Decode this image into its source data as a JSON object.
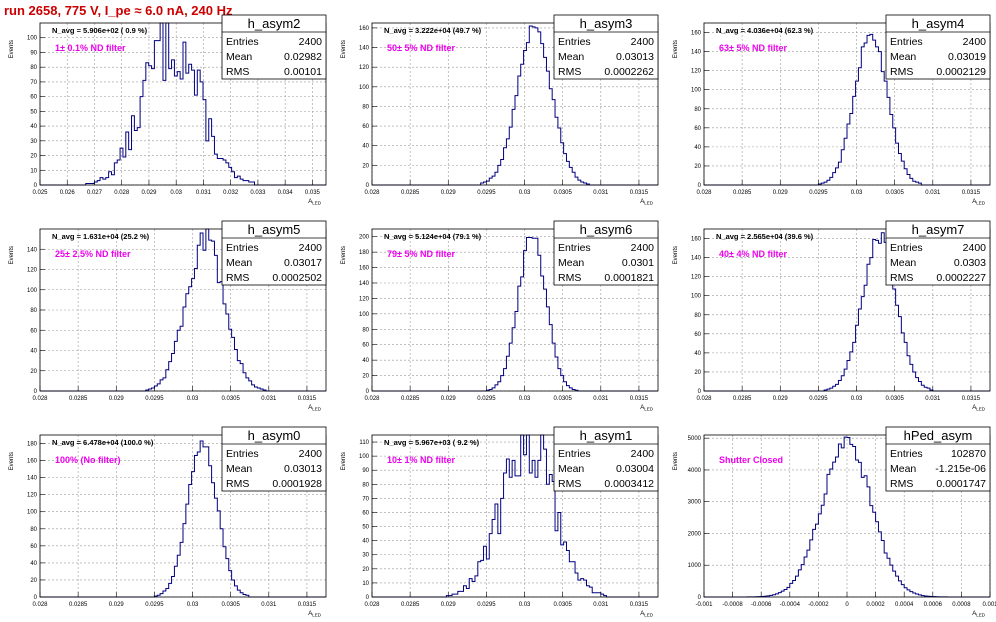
{
  "header": {
    "title": "run 2658,   775 V, I_pe ≈ 6.0 nA, 240 Hz"
  },
  "colors": {
    "histogram": "#000080",
    "title": "#cc0000",
    "annotation": "#ee00ee",
    "grid": "#9a9a9a"
  },
  "chart_data": [
    {
      "type": "histogram",
      "name": "h_asym2",
      "navg": "N_avg = 5.906e+02 ( 0.9 %)",
      "filter": "1± 0.1% ND filter",
      "stats": [
        [
          "Entries",
          "2400"
        ],
        [
          "Mean",
          "0.02982"
        ],
        [
          "RMS",
          "0.00101"
        ]
      ],
      "xlabel": "A_LED",
      "ylabel": "Events",
      "xlim": [
        0.025,
        0.0355
      ],
      "ylim": [
        0,
        110
      ],
      "xticks": [
        "0.025",
        "0.026",
        "0.027",
        "0.028",
        "0.029",
        "0.03",
        "0.031",
        "0.032",
        "0.033",
        "0.034",
        "0.035"
      ],
      "yticks": [
        "0",
        "10",
        "20",
        "30",
        "40",
        "50",
        "60",
        "70",
        "80",
        "90",
        "100"
      ],
      "distribution": {
        "mean": 0.02982,
        "rms": 0.00101,
        "peak": 100
      }
    },
    {
      "type": "histogram",
      "name": "h_asym3",
      "navg": "N_avg = 3.222e+04 (49.7 %)",
      "filter": "50± 5% ND filter",
      "stats": [
        [
          "Entries",
          "2400"
        ],
        [
          "Mean",
          "0.03013"
        ],
        [
          "RMS",
          "0.0002262"
        ]
      ],
      "xlabel": "A_LED",
      "ylabel": "Events",
      "xlim": [
        0.028,
        0.03175
      ],
      "ylim": [
        0,
        165
      ],
      "xticks": [
        "0.028",
        "0.0285",
        "0.029",
        "0.0295",
        "0.03",
        "0.0305",
        "0.031",
        "0.0315"
      ],
      "yticks": [
        "0",
        "20",
        "40",
        "60",
        "80",
        "100",
        "120",
        "140",
        "160"
      ],
      "distribution": {
        "mean": 0.03013,
        "rms": 0.0002262,
        "peak": 160
      }
    },
    {
      "type": "histogram",
      "name": "h_asym4",
      "navg": "N_avg = 4.036e+04 (62.3 %)",
      "filter": "63± 5% ND filter",
      "stats": [
        [
          "Entries",
          "2400"
        ],
        [
          "Mean",
          "0.03019"
        ],
        [
          "RMS",
          "0.0002129"
        ]
      ],
      "xlabel": "A_LED",
      "ylabel": "Events",
      "xlim": [
        0.028,
        0.03175
      ],
      "ylim": [
        0,
        170
      ],
      "xticks": [
        "0.028",
        "0.0285",
        "0.029",
        "0.0295",
        "0.03",
        "0.0305",
        "0.031",
        "0.0315"
      ],
      "yticks": [
        "0",
        "20",
        "40",
        "60",
        "80",
        "100",
        "120",
        "140",
        "160"
      ],
      "distribution": {
        "mean": 0.03019,
        "rms": 0.0002129,
        "peak": 162
      }
    },
    {
      "type": "histogram",
      "name": "h_asym5",
      "navg": "N_avg = 1.631e+04 (25.2 %)",
      "filter": "25± 2.5% ND filter",
      "stats": [
        [
          "Entries",
          "2400"
        ],
        [
          "Mean",
          "0.03017"
        ],
        [
          "RMS",
          "0.0002502"
        ]
      ],
      "xlabel": "A_LED",
      "ylabel": "Events",
      "xlim": [
        0.028,
        0.03175
      ],
      "ylim": [
        0,
        160
      ],
      "xticks": [
        "0.028",
        "0.0285",
        "0.029",
        "0.0295",
        "0.03",
        "0.0305",
        "0.031",
        "0.0315"
      ],
      "yticks": [
        "0",
        "20",
        "40",
        "60",
        "80",
        "100",
        "120",
        "140"
      ],
      "distribution": {
        "mean": 0.03017,
        "rms": 0.0002502,
        "peak": 150
      }
    },
    {
      "type": "histogram",
      "name": "h_asym6",
      "navg": "N_avg = 5.124e+04 (79.1 %)",
      "filter": "79± 5% ND filter",
      "stats": [
        [
          "Entries",
          "2400"
        ],
        [
          "Mean",
          "0.0301"
        ],
        [
          "RMS",
          "0.0001821"
        ]
      ],
      "xlabel": "A_LED",
      "ylabel": "Events",
      "xlim": [
        0.028,
        0.03175
      ],
      "ylim": [
        0,
        210
      ],
      "xticks": [
        "0.028",
        "0.0285",
        "0.029",
        "0.0295",
        "0.03",
        "0.0305",
        "0.031",
        "0.0315"
      ],
      "yticks": [
        "0",
        "20",
        "40",
        "60",
        "80",
        "100",
        "120",
        "140",
        "160",
        "180",
        "200"
      ],
      "distribution": {
        "mean": 0.0301,
        "rms": 0.0001821,
        "peak": 200
      }
    },
    {
      "type": "histogram",
      "name": "h_asym7",
      "navg": "N_avg = 2.565e+04 (39.6 %)",
      "filter": "40± 4% ND filter",
      "stats": [
        [
          "Entries",
          "2400"
        ],
        [
          "Mean",
          "0.0303"
        ],
        [
          "RMS",
          "0.0002227"
        ]
      ],
      "xlabel": "A_LED",
      "ylabel": "Events",
      "xlim": [
        0.028,
        0.03175
      ],
      "ylim": [
        0,
        170
      ],
      "xticks": [
        "0.028",
        "0.0285",
        "0.029",
        "0.0295",
        "0.03",
        "0.0305",
        "0.031",
        "0.0315"
      ],
      "yticks": [
        "0",
        "20",
        "40",
        "60",
        "80",
        "100",
        "120",
        "140",
        "160"
      ],
      "distribution": {
        "mean": 0.0303,
        "rms": 0.0002227,
        "peak": 162
      }
    },
    {
      "type": "histogram",
      "name": "h_asym0",
      "navg": "N_avg = 6.478e+04 (100.0 %)",
      "filter": "100% (No filter)",
      "stats": [
        [
          "Entries",
          "2400"
        ],
        [
          "Mean",
          "0.03013"
        ],
        [
          "RMS",
          "0.0001928"
        ]
      ],
      "xlabel": "A_LED",
      "ylabel": "Events",
      "xlim": [
        0.028,
        0.03175
      ],
      "ylim": [
        0,
        190
      ],
      "xticks": [
        "0.028",
        "0.0285",
        "0.029",
        "0.0295",
        "0.03",
        "0.0305",
        "0.031",
        "0.0315"
      ],
      "yticks": [
        "0",
        "20",
        "40",
        "60",
        "80",
        "100",
        "120",
        "140",
        "160",
        "180"
      ],
      "distribution": {
        "mean": 0.03013,
        "rms": 0.0001928,
        "peak": 180
      }
    },
    {
      "type": "histogram",
      "name": "h_asym1",
      "navg": "N_avg = 5.967e+03 ( 9.2 %)",
      "filter": "10± 1% ND filter",
      "stats": [
        [
          "Entries",
          "2400"
        ],
        [
          "Mean",
          "0.03004"
        ],
        [
          "RMS",
          "0.0003412"
        ]
      ],
      "xlabel": "A_LED",
      "ylabel": "Events",
      "xlim": [
        0.028,
        0.03175
      ],
      "ylim": [
        0,
        115
      ],
      "xticks": [
        "0.028",
        "0.0285",
        "0.029",
        "0.0295",
        "0.03",
        "0.0305",
        "0.031",
        "0.0315"
      ],
      "yticks": [
        "0",
        "10",
        "20",
        "30",
        "40",
        "50",
        "60",
        "70",
        "80",
        "90",
        "100",
        "110"
      ],
      "distribution": {
        "mean": 0.03004,
        "rms": 0.0003412,
        "peak": 110
      }
    },
    {
      "type": "histogram",
      "name": "hPed_asym",
      "navg": "",
      "filter": "Shutter Closed",
      "stats": [
        [
          "Entries",
          "102870"
        ],
        [
          "Mean",
          "-1.215e-06"
        ],
        [
          "RMS",
          "0.0001747"
        ]
      ],
      "xlabel": "A_LED",
      "ylabel": "Events",
      "xlim": [
        -0.001,
        0.001
      ],
      "ylim": [
        0,
        5100
      ],
      "xticks": [
        "-0.001",
        "-0.0008",
        "-0.0006",
        "-0.0004",
        "-0.0002",
        "0",
        "0.0002",
        "0.0004",
        "0.0006",
        "0.0008",
        "0.001"
      ],
      "yticks": [
        "0",
        "1000",
        "2000",
        "3000",
        "4000",
        "5000"
      ],
      "distribution": {
        "mean": -1.215e-06,
        "rms": 0.0001747,
        "peak": 4850
      }
    }
  ]
}
